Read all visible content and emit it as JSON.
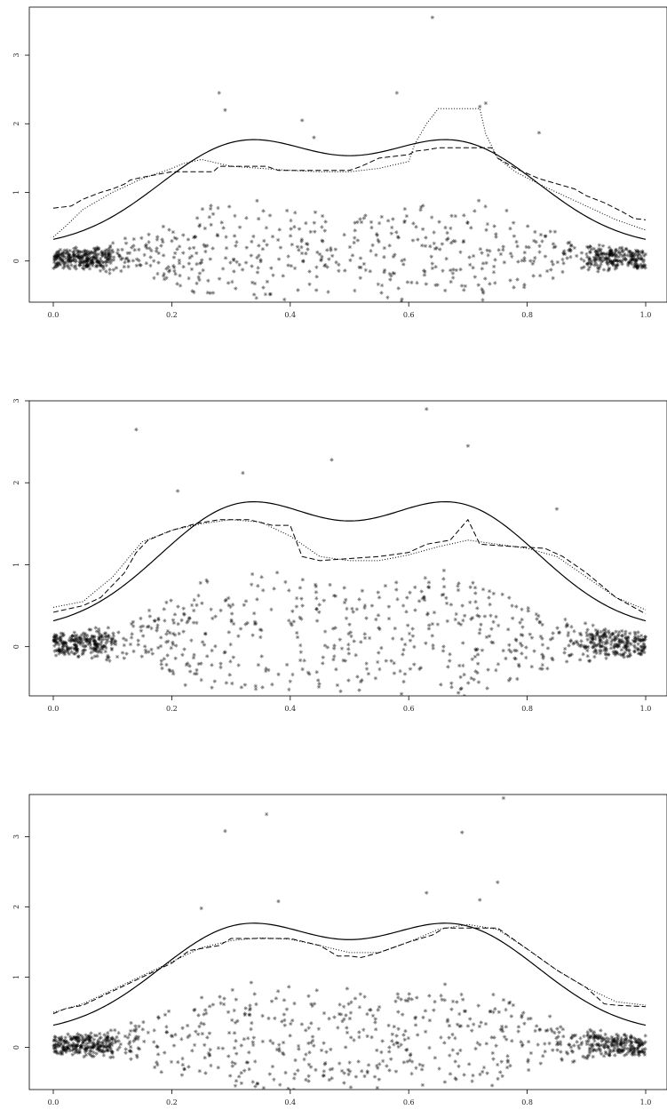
{
  "chart_data": [
    {
      "type": "scatter",
      "xlim": [
        0,
        1
      ],
      "ylim": [
        -0.6,
        3.7
      ],
      "x_ticks": [
        "0.0",
        "0.2",
        "0.4",
        "0.6",
        "0.8",
        "1.0"
      ],
      "y_ticks": [
        "0",
        "1",
        "2",
        "3"
      ],
      "grid": false,
      "n_points": 1000,
      "outliers": [
        [
          0.28,
          2.45
        ],
        [
          0.29,
          2.2
        ],
        [
          0.42,
          2.05
        ],
        [
          0.44,
          1.8
        ],
        [
          0.58,
          2.45
        ],
        [
          0.64,
          3.55
        ],
        [
          0.72,
          2.25
        ],
        [
          0.73,
          2.3
        ],
        [
          0.82,
          1.87
        ]
      ],
      "true_curve": "bimodal",
      "series": [
        {
          "style": "dashed",
          "x": [
            0.0,
            0.03,
            0.05,
            0.08,
            0.1,
            0.12,
            0.13,
            0.15,
            0.2,
            0.27,
            0.28,
            0.36,
            0.38,
            0.45,
            0.5,
            0.52,
            0.55,
            0.6,
            0.61,
            0.63,
            0.65,
            0.66,
            0.74,
            0.75,
            0.78,
            0.82,
            0.84,
            0.88,
            0.9,
            0.93,
            0.96,
            0.98,
            1.0
          ],
          "y": [
            0.77,
            0.8,
            0.9,
            1.0,
            1.05,
            1.12,
            1.18,
            1.22,
            1.3,
            1.3,
            1.38,
            1.38,
            1.32,
            1.32,
            1.32,
            1.38,
            1.5,
            1.55,
            1.6,
            1.62,
            1.65,
            1.65,
            1.65,
            1.5,
            1.35,
            1.2,
            1.15,
            1.05,
            0.95,
            0.85,
            0.72,
            0.62,
            0.6
          ]
        },
        {
          "style": "dotted",
          "x": [
            0.0,
            0.02,
            0.05,
            0.1,
            0.15,
            0.2,
            0.22,
            0.25,
            0.3,
            0.35,
            0.4,
            0.45,
            0.5,
            0.55,
            0.6,
            0.61,
            0.63,
            0.65,
            0.72,
            0.73,
            0.75,
            0.78,
            0.82,
            0.85,
            0.9,
            0.95,
            1.0
          ],
          "y": [
            0.35,
            0.5,
            0.75,
            1.0,
            1.2,
            1.35,
            1.42,
            1.48,
            1.38,
            1.35,
            1.32,
            1.3,
            1.3,
            1.35,
            1.45,
            1.7,
            2.0,
            2.22,
            2.22,
            1.85,
            1.5,
            1.3,
            1.12,
            1.0,
            0.8,
            0.6,
            0.45
          ]
        }
      ]
    },
    {
      "type": "scatter",
      "xlim": [
        0,
        1
      ],
      "ylim": [
        -0.6,
        3.0
      ],
      "x_ticks": [
        "0.0",
        "0.2",
        "0.4",
        "0.6",
        "0.8",
        "1.0"
      ],
      "y_ticks": [
        "0",
        "1",
        "2",
        "3"
      ],
      "grid": false,
      "n_points": 1000,
      "outliers": [
        [
          0.14,
          2.65
        ],
        [
          0.21,
          1.9
        ],
        [
          0.32,
          2.12
        ],
        [
          0.47,
          2.28
        ],
        [
          0.63,
          2.9
        ],
        [
          0.7,
          2.45
        ],
        [
          0.85,
          1.68
        ]
      ],
      "true_curve": "bimodal",
      "series": [
        {
          "style": "dashed",
          "x": [
            0.0,
            0.05,
            0.08,
            0.1,
            0.12,
            0.14,
            0.16,
            0.2,
            0.24,
            0.28,
            0.33,
            0.37,
            0.4,
            0.42,
            0.45,
            0.55,
            0.6,
            0.63,
            0.67,
            0.7,
            0.72,
            0.78,
            0.83,
            0.86,
            0.9,
            0.95,
            1.0
          ],
          "y": [
            0.42,
            0.5,
            0.6,
            0.75,
            0.9,
            1.15,
            1.3,
            1.42,
            1.5,
            1.55,
            1.55,
            1.48,
            1.48,
            1.1,
            1.05,
            1.1,
            1.15,
            1.25,
            1.3,
            1.55,
            1.25,
            1.22,
            1.2,
            1.1,
            0.9,
            0.6,
            0.4
          ]
        },
        {
          "style": "dotted",
          "x": [
            0.0,
            0.05,
            0.1,
            0.15,
            0.2,
            0.25,
            0.3,
            0.35,
            0.4,
            0.45,
            0.5,
            0.55,
            0.6,
            0.65,
            0.7,
            0.75,
            0.8,
            0.85,
            0.9,
            0.95,
            1.0
          ],
          "y": [
            0.48,
            0.55,
            0.85,
            1.28,
            1.42,
            1.5,
            1.55,
            1.52,
            1.35,
            1.1,
            1.05,
            1.05,
            1.12,
            1.22,
            1.3,
            1.25,
            1.2,
            1.1,
            0.85,
            0.6,
            0.45
          ]
        }
      ]
    },
    {
      "type": "scatter",
      "xlim": [
        0,
        1
      ],
      "ylim": [
        -0.6,
        3.6
      ],
      "x_ticks": [
        "0.0",
        "0.2",
        "0.4",
        "0.6",
        "0.8",
        "1.0"
      ],
      "y_ticks": [
        "0",
        "1",
        "2",
        "3"
      ],
      "grid": false,
      "n_points": 1000,
      "outliers": [
        [
          0.25,
          1.98
        ],
        [
          0.29,
          3.08
        ],
        [
          0.36,
          3.32
        ],
        [
          0.38,
          2.08
        ],
        [
          0.63,
          2.2
        ],
        [
          0.69,
          3.06
        ],
        [
          0.72,
          2.1
        ],
        [
          0.75,
          2.35
        ],
        [
          0.76,
          3.55
        ]
      ],
      "true_curve": "bimodal",
      "series": [
        {
          "style": "dashed",
          "x": [
            0.0,
            0.02,
            0.05,
            0.1,
            0.15,
            0.2,
            0.23,
            0.28,
            0.3,
            0.35,
            0.4,
            0.45,
            0.48,
            0.5,
            0.52,
            0.55,
            0.6,
            0.64,
            0.66,
            0.7,
            0.75,
            0.8,
            0.85,
            0.9,
            0.93,
            0.95,
            1.0
          ],
          "y": [
            0.48,
            0.55,
            0.6,
            0.8,
            1.0,
            1.2,
            1.38,
            1.45,
            1.55,
            1.55,
            1.55,
            1.45,
            1.3,
            1.3,
            1.28,
            1.35,
            1.5,
            1.6,
            1.7,
            1.7,
            1.7,
            1.4,
            1.1,
            0.85,
            0.62,
            0.6,
            0.58
          ]
        },
        {
          "style": "dotted",
          "x": [
            0.0,
            0.05,
            0.1,
            0.15,
            0.2,
            0.25,
            0.3,
            0.35,
            0.4,
            0.45,
            0.5,
            0.55,
            0.6,
            0.65,
            0.7,
            0.75,
            0.8,
            0.85,
            0.9,
            0.95,
            1.0
          ],
          "y": [
            0.5,
            0.62,
            0.82,
            1.02,
            1.22,
            1.42,
            1.52,
            1.56,
            1.54,
            1.45,
            1.35,
            1.35,
            1.5,
            1.68,
            1.75,
            1.68,
            1.4,
            1.1,
            0.85,
            0.65,
            0.6
          ]
        }
      ]
    }
  ]
}
